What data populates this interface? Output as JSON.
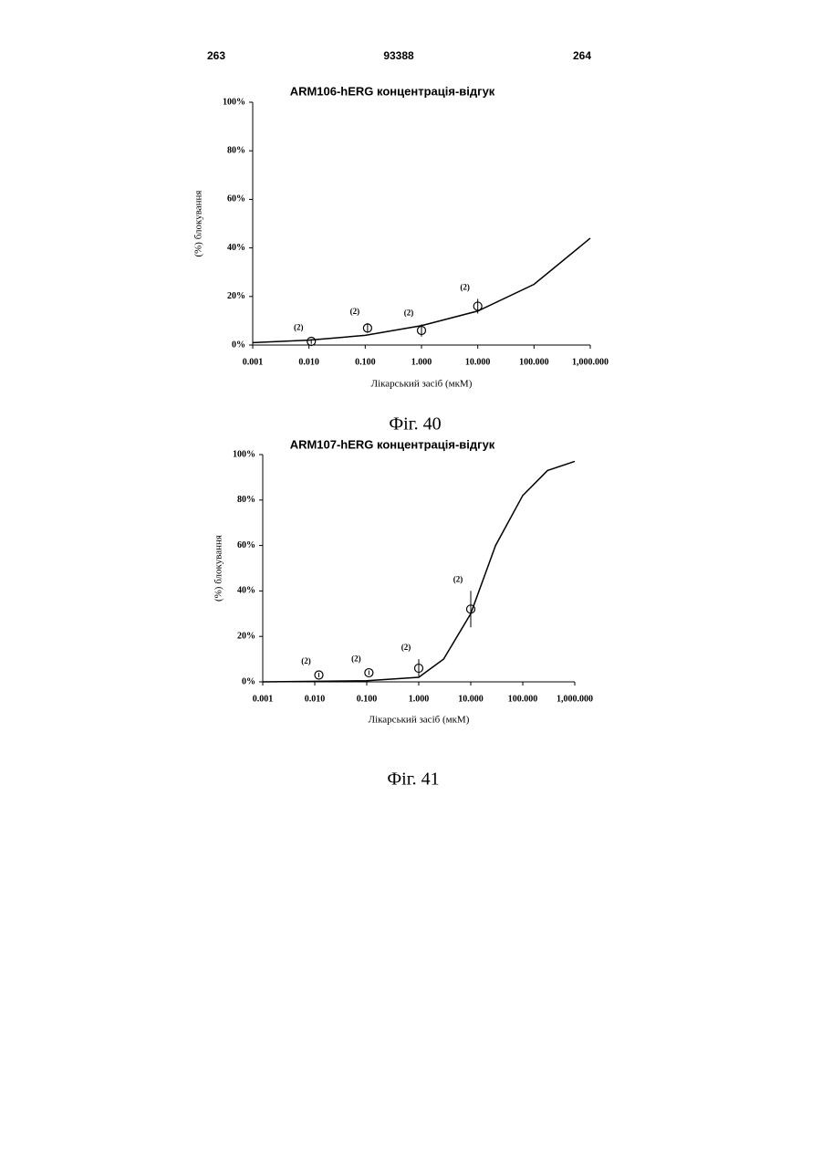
{
  "header": {
    "left": "263",
    "center": "93388",
    "right": "264"
  },
  "chart_data": [
    {
      "type": "scatter",
      "title": "ARM106-hERG концентрація-відгук",
      "y_label": "(%) блокування",
      "x_label": "Лікарський засіб (мкМ)",
      "caption": "Фіг. 40",
      "log_x": true,
      "xlim": [
        0.001,
        1000
      ],
      "ylim": [
        0,
        100
      ],
      "xticks": [
        {
          "value": 0.001,
          "label": "0.001"
        },
        {
          "value": 0.01,
          "label": "0.010"
        },
        {
          "value": 0.1,
          "label": "0.100"
        },
        {
          "value": 1,
          "label": "1.000"
        },
        {
          "value": 10,
          "label": "10.000"
        },
        {
          "value": 100,
          "label": "100.000"
        },
        {
          "value": 1000,
          "label": "1,000.000"
        }
      ],
      "yticks": [
        {
          "value": 0,
          "label": "0%"
        },
        {
          "value": 20,
          "label": "20%"
        },
        {
          "value": 40,
          "label": "40%"
        },
        {
          "value": 60,
          "label": "60%"
        },
        {
          "value": 80,
          "label": "80%"
        },
        {
          "value": 100,
          "label": "100%"
        }
      ],
      "series": [
        {
          "type": "points",
          "color": "#000000",
          "x": [
            0.011,
            0.11,
            1.0,
            10
          ],
          "values": [
            1.5,
            7,
            6,
            16
          ],
          "errors": [
            1,
            2,
            2.5,
            3
          ],
          "point_labels": [
            "(2)",
            "(2)",
            "(2)",
            "(2)"
          ]
        },
        {
          "type": "line",
          "color": "#000000",
          "x": [
            0.001,
            0.01,
            0.1,
            1,
            10,
            100,
            1000
          ],
          "values": [
            1,
            2,
            4,
            8,
            14,
            25,
            44
          ]
        }
      ]
    },
    {
      "type": "scatter",
      "title": "ARM107-hERG концентрація-відгук",
      "y_label": "(%) блокування",
      "x_label": "Лікарський засіб (мкМ)",
      "caption": "Фіг. 41",
      "log_x": true,
      "xlim": [
        0.001,
        1000
      ],
      "ylim": [
        0,
        100
      ],
      "xticks": [
        {
          "value": 0.001,
          "label": "0.001"
        },
        {
          "value": 0.01,
          "label": "0.010"
        },
        {
          "value": 0.1,
          "label": "0.100"
        },
        {
          "value": 1,
          "label": "1.000"
        },
        {
          "value": 10,
          "label": "10.000"
        },
        {
          "value": 100,
          "label": "100.000"
        },
        {
          "value": 1000,
          "label": "1,000.000"
        }
      ],
      "yticks": [
        {
          "value": 0,
          "label": "0%"
        },
        {
          "value": 20,
          "label": "20%"
        },
        {
          "value": 40,
          "label": "40%"
        },
        {
          "value": 60,
          "label": "60%"
        },
        {
          "value": 80,
          "label": "80%"
        },
        {
          "value": 100,
          "label": "100%"
        }
      ],
      "series": [
        {
          "type": "points",
          "color": "#000000",
          "x": [
            0.012,
            0.11,
            1.0,
            10
          ],
          "values": [
            3,
            4,
            6,
            32
          ],
          "errors": [
            1,
            1,
            4,
            8
          ],
          "point_labels": [
            "(2)",
            "(2)",
            "(2)",
            "(2)"
          ]
        },
        {
          "type": "line",
          "color": "#000000",
          "x": [
            0.001,
            0.1,
            1,
            3,
            10,
            30,
            100,
            300,
            1000
          ],
          "values": [
            0,
            0.5,
            2,
            10,
            30,
            60,
            82,
            93,
            97
          ]
        }
      ]
    }
  ]
}
